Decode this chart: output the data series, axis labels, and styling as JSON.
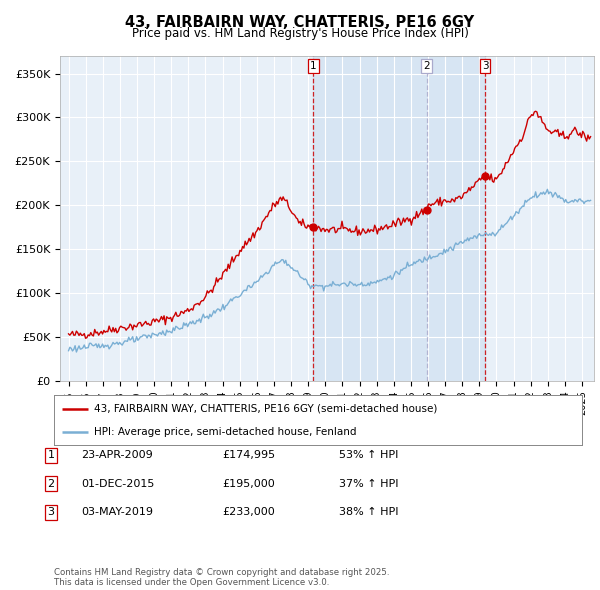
{
  "title": "43, FAIRBAIRN WAY, CHATTERIS, PE16 6GY",
  "subtitle": "Price paid vs. HM Land Registry's House Price Index (HPI)",
  "ylim": [
    0,
    370000
  ],
  "yticks": [
    0,
    50000,
    100000,
    150000,
    200000,
    250000,
    300000,
    350000
  ],
  "ytick_labels": [
    "£0",
    "£50K",
    "£100K",
    "£150K",
    "£200K",
    "£250K",
    "£300K",
    "£350K"
  ],
  "xlim_start": 1994.5,
  "xlim_end": 2025.7,
  "transactions": [
    {
      "num": 1,
      "date": "23-APR-2009",
      "price": 174995,
      "pct": "53%",
      "year": 2009.31
    },
    {
      "num": 2,
      "date": "01-DEC-2015",
      "price": 195000,
      "pct": "37%",
      "year": 2015.92
    },
    {
      "num": 3,
      "date": "03-MAY-2019",
      "price": 233000,
      "pct": "38%",
      "year": 2019.33
    }
  ],
  "legend_label_red": "43, FAIRBAIRN WAY, CHATTERIS, PE16 6GY (semi-detached house)",
  "legend_label_blue": "HPI: Average price, semi-detached house, Fenland",
  "footnote": "Contains HM Land Registry data © Crown copyright and database right 2025.\nThis data is licensed under the Open Government Licence v3.0.",
  "red_color": "#cc0000",
  "blue_color": "#7aafd4",
  "vline1_color": "#cc0000",
  "vline2_color": "#aaaacc",
  "vline3_color": "#cc0000",
  "grid_color": "#cccccc",
  "chart_bg": "#ddeeff",
  "background_color": "#ffffff",
  "shade_color": "#ddeeff",
  "red_anchors_x": [
    1995,
    1996,
    1997,
    1998,
    1999,
    2000,
    2001,
    2002,
    2003,
    2004,
    2005,
    2006,
    2007,
    2007.5,
    2008,
    2008.5,
    2009.31,
    2010,
    2011,
    2012,
    2013,
    2014,
    2015,
    2015.92,
    2016,
    2017,
    2017.5,
    2018,
    2019.33,
    2020,
    2020.5,
    2021,
    2021.5,
    2022,
    2022.3,
    2022.5,
    2023,
    2024,
    2024.5,
    2025,
    2025.5
  ],
  "red_anchors_y": [
    52000,
    53000,
    56000,
    60000,
    63000,
    67000,
    72000,
    80000,
    95000,
    120000,
    148000,
    170000,
    200000,
    208000,
    195000,
    178000,
    174995,
    172000,
    172000,
    170000,
    172000,
    178000,
    185000,
    195000,
    200000,
    205000,
    205000,
    210000,
    233000,
    228000,
    245000,
    262000,
    278000,
    302000,
    308000,
    300000,
    285000,
    278000,
    285000,
    280000,
    275000
  ],
  "blue_anchors_x": [
    1995,
    1996,
    1997,
    1998,
    1999,
    2000,
    2001,
    2002,
    2003,
    2004,
    2005,
    2006,
    2007,
    2007.5,
    2008,
    2009,
    2009.5,
    2010,
    2011,
    2012,
    2013,
    2014,
    2015,
    2016,
    2017,
    2017.5,
    2018,
    2019,
    2019.5,
    2020,
    2020.5,
    2021,
    2021.5,
    2022,
    2023,
    2023.5,
    2024,
    2025,
    2025.5
  ],
  "blue_anchors_y": [
    36000,
    38000,
    40000,
    43000,
    47000,
    52000,
    57000,
    64000,
    72000,
    83000,
    98000,
    112000,
    132000,
    137000,
    130000,
    110000,
    108000,
    108000,
    110000,
    110000,
    112000,
    120000,
    132000,
    140000,
    148000,
    152000,
    158000,
    165000,
    168000,
    168000,
    178000,
    188000,
    198000,
    210000,
    215000,
    212000,
    205000,
    205000,
    205000
  ]
}
